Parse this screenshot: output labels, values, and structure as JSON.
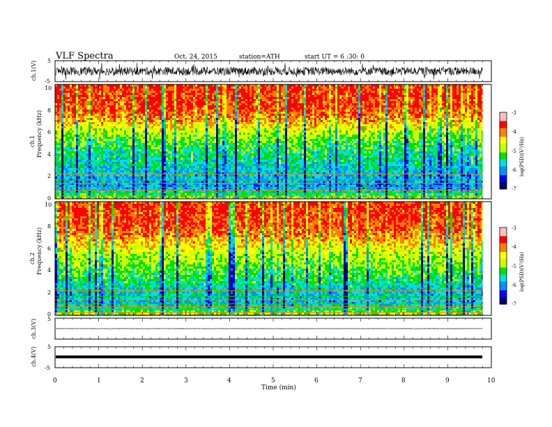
{
  "header": {
    "title": "VLF  Spectra",
    "date": "Oct. 24, 2015",
    "station": "station=ATH",
    "start": "start  UT  =    6  :30: 0"
  },
  "chart_data": [
    {
      "type": "line",
      "name": "ch1-waveform",
      "ylabel": "ch.1(V)",
      "ylim": [
        -5,
        5
      ],
      "yticks": [
        "5",
        "-5"
      ],
      "xlim": [
        0,
        10
      ],
      "description_values": {
        "baseline_v": 0.0,
        "typical_amplitude_v": 2.0,
        "spike_amplitude_v": 4.0
      }
    },
    {
      "type": "heatmap",
      "name": "ch1-spectrogram",
      "ylabel_top": "ch.1",
      "ylabel": "Frequency  (kHz)",
      "ylim": [
        0,
        10
      ],
      "yticks": [
        "0",
        "2",
        "4",
        "6",
        "8",
        "10"
      ],
      "xlim": [
        0,
        9.8
      ],
      "colorbar": {
        "label": "log(PSD)(V²/Hz)",
        "range": [
          -7,
          -3
        ],
        "ticks": [
          "-3",
          "-4",
          "-5",
          "-6",
          "-7"
        ]
      },
      "profile": {
        "freq_khz": [
          0,
          1,
          2,
          3,
          4,
          5,
          6,
          7,
          8,
          10
        ],
        "log_psd": [
          -4.6,
          -5.8,
          -5.6,
          -5.4,
          -5.2,
          -4.9,
          -4.4,
          -3.7,
          -3.4,
          -3.3
        ]
      }
    },
    {
      "type": "heatmap",
      "name": "ch2-spectrogram",
      "ylabel_top": "ch.2",
      "ylabel": "Frequency  (kHz)",
      "ylim": [
        0,
        10
      ],
      "yticks": [
        "0",
        "2",
        "4",
        "6",
        "8",
        "10"
      ],
      "xlim": [
        0,
        9.8
      ],
      "colorbar": {
        "label": "log(PSD)(V²/Hz)",
        "range": [
          -7,
          -3
        ],
        "ticks": [
          "-3",
          "-4",
          "-5",
          "-6",
          "-7"
        ]
      },
      "profile": {
        "freq_khz": [
          0,
          1,
          2,
          3,
          4,
          5,
          6,
          7,
          8,
          10
        ],
        "log_psd": [
          -4.6,
          -5.6,
          -5.5,
          -5.2,
          -4.9,
          -4.6,
          -4.2,
          -3.7,
          -3.4,
          -3.3
        ]
      }
    },
    {
      "type": "line",
      "name": "ch3-waveform",
      "ylabel": "ch.3(V)",
      "ylim": [
        -5,
        5
      ],
      "yticks": [
        "5"
      ],
      "xlim": [
        0,
        10
      ],
      "description_values": {
        "baseline_v": 0.0
      }
    },
    {
      "type": "line",
      "name": "ch4-waveform",
      "ylabel": "ch.4(V)",
      "ylim": [
        -5,
        5
      ],
      "yticks": [
        "5",
        "-5"
      ],
      "xlim": [
        0,
        10
      ],
      "description_values": {
        "baseline_v": 0.0
      }
    }
  ],
  "xaxis": {
    "label": "Time  (min)",
    "ticks": [
      "0",
      "1",
      "2",
      "3",
      "4",
      "5",
      "6",
      "7",
      "8",
      "9",
      "10"
    ],
    "range": [
      0,
      10
    ]
  },
  "colors": {
    "map": [
      "#000070",
      "#0000ff",
      "#0090ff",
      "#00e0e0",
      "#00e000",
      "#c8ff00",
      "#ffff00",
      "#ff8000",
      "#ff0000",
      "#ffc0c0"
    ]
  }
}
